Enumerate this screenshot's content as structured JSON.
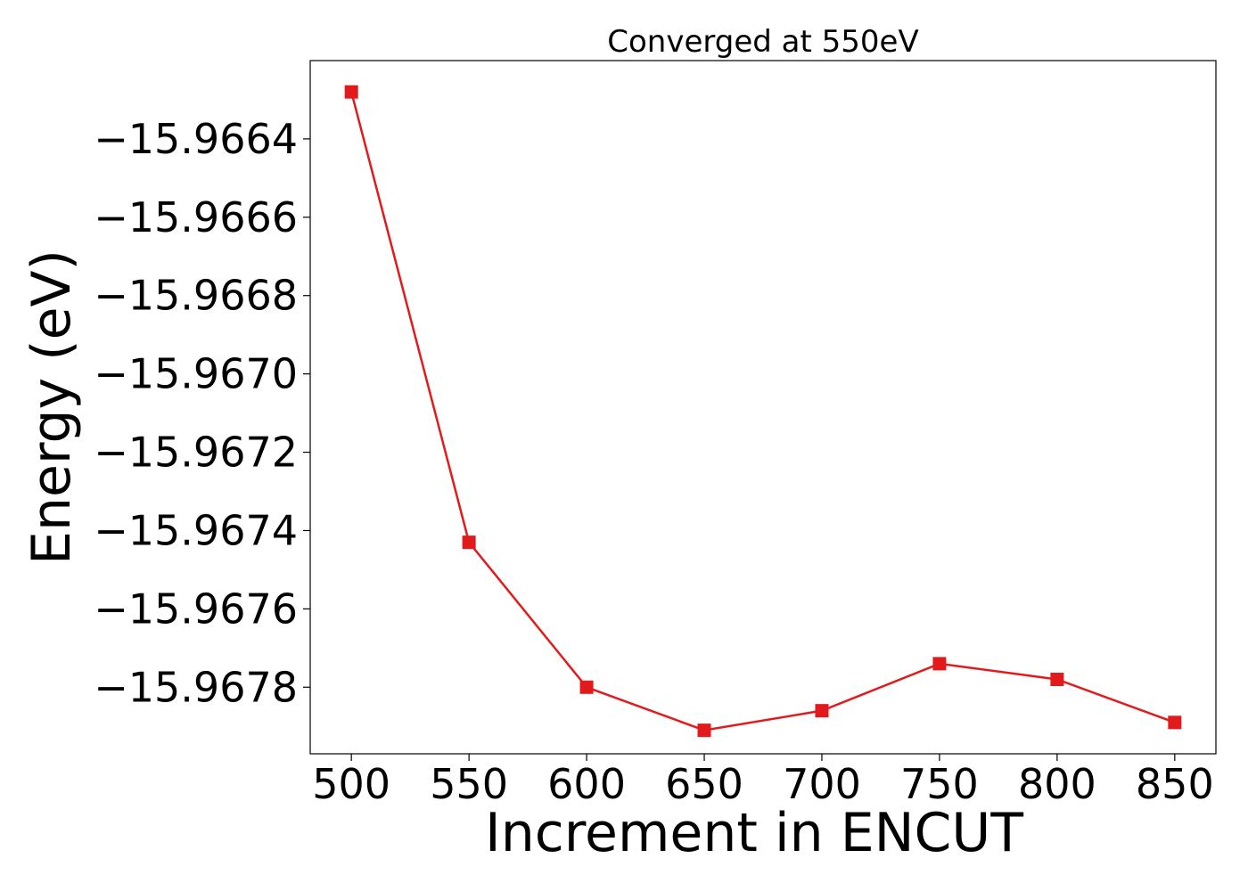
{
  "chart_data": {
    "type": "line",
    "title": "Converged at 550eV",
    "xlabel": "Increment in ENCUT",
    "ylabel": "Energy (eV)",
    "x": [
      500,
      550,
      600,
      650,
      700,
      750,
      800,
      850
    ],
    "series": [
      {
        "values": [
          -15.96628,
          -15.96743,
          -15.9678,
          -15.96791,
          -15.96786,
          -15.96774,
          -15.96778,
          -15.96789
        ],
        "color": "#e31a1c",
        "marker": "square"
      }
    ],
    "xlim": [
      482.5,
      867.5
    ],
    "ylim": [
      -15.96797,
      -15.9662
    ],
    "xticks": [
      500,
      550,
      600,
      650,
      700,
      750,
      800,
      850
    ],
    "xtick_labels": [
      "500",
      "550",
      "600",
      "650",
      "700",
      "750",
      "800",
      "850"
    ],
    "yticks": [
      -15.9664,
      -15.9666,
      -15.9668,
      -15.967,
      -15.9672,
      -15.9674,
      -15.9676,
      -15.9678
    ],
    "ytick_labels": [
      "−15.9664",
      "−15.9666",
      "−15.9668",
      "−15.9670",
      "−15.9672",
      "−15.9674",
      "−15.9676",
      "−15.9678"
    ],
    "grid": false,
    "legend": "none"
  }
}
